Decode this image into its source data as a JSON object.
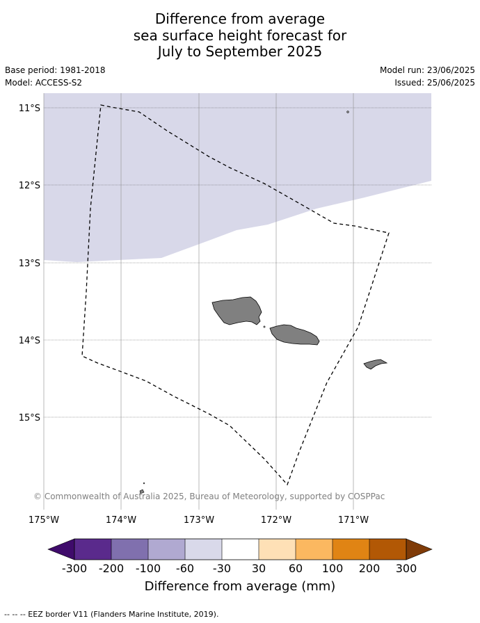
{
  "title": {
    "line1": "Difference from average",
    "line2": "sea surface height forecast for",
    "line3": "July to September 2025"
  },
  "meta": {
    "base_period": "Base period: 1981-2018",
    "model": "Model: ACCESS-S2",
    "model_run": "Model run: 23/06/2025",
    "issued": "Issued: 25/06/2025"
  },
  "map": {
    "lat_labels": [
      "11°S",
      "12°S",
      "13°S",
      "14°S",
      "15°S"
    ],
    "lon_labels": [
      "175°W",
      "174°W",
      "173°W",
      "172°W",
      "171°W"
    ],
    "copyright": "© Commonwealth of Australia 2025, Bureau of Meteorology, supported by COSPPac",
    "colors": {
      "land": "#808080",
      "anomaly_fill": "#d8d8e9",
      "eez_line": "#000000"
    }
  },
  "colorbar": {
    "colors": [
      "#3f0b6b",
      "#5a2a8c",
      "#8070ae",
      "#b0a9d1",
      "#d9d9ea",
      "#ffffff",
      "#fee0b6",
      "#fbb860",
      "#e08414",
      "#b25805",
      "#7f3b08"
    ],
    "labels": [
      "-300",
      "-200",
      "-100",
      "-60",
      "-30",
      "30",
      "60",
      "100",
      "200",
      "300"
    ],
    "title": "Difference from average (mm)"
  },
  "footnote": "--  --  -- EEZ border V11 (Flanders Marine Institute, 2019)."
}
